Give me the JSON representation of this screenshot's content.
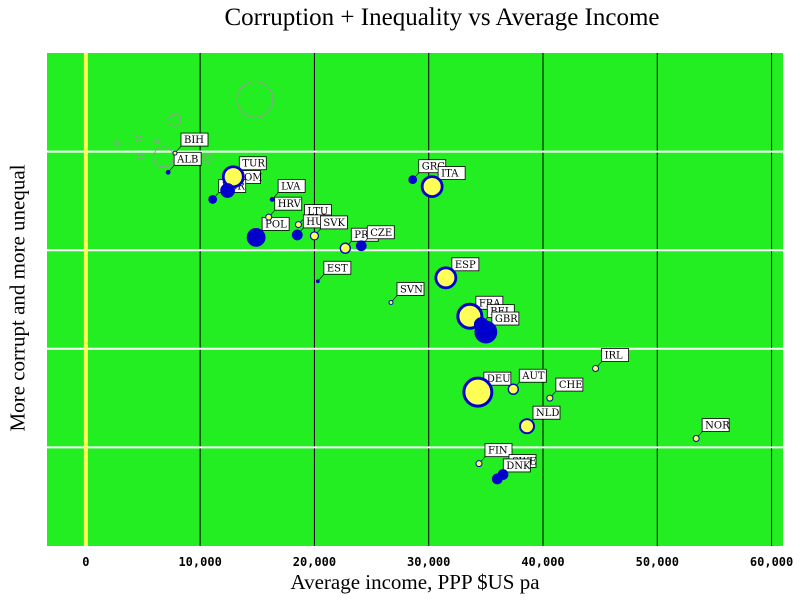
{
  "chart_data": {
    "type": "scatter",
    "title": "Corruption + Inequality vs Average Income",
    "xlabel": "Average income, PPP $US pa",
    "ylabel": "More corrupt and more unequal",
    "xlim": [
      -3400,
      61000
    ],
    "ylim": [
      0,
      100
    ],
    "x_ticks": [
      0,
      10000,
      20000,
      30000,
      40000,
      50000,
      60000
    ],
    "x_tick_labels": [
      "0",
      "10,000",
      "20,000",
      "30,000",
      "40,000",
      "50,000",
      "60,000"
    ],
    "y_gridlines": [
      20,
      40,
      60,
      80
    ],
    "colors": {
      "plot_bg": "#22ee22",
      "grid_h": "#ffffff",
      "grid_v": "#000000",
      "zero_line": "#ffff55",
      "blue": "#0000cc",
      "yellow": "#ffff55",
      "label_box": "#ffffff"
    },
    "points": [
      {
        "name": "BIH",
        "x": 7800,
        "y": 79.7,
        "size": 2,
        "fill": "yellow",
        "ring": "blue"
      },
      {
        "name": "ALB",
        "x": 7200,
        "y": 75.8,
        "size": 2,
        "fill": "blue",
        "ring": "blue"
      },
      {
        "name": "TUR",
        "x": 12900,
        "y": 74.9,
        "size": 10,
        "fill": "yellow",
        "ring": "blue"
      },
      {
        "name": "ROM",
        "x": 12400,
        "y": 72.1,
        "size": 7,
        "fill": "blue",
        "ring": "blue"
      },
      {
        "name": "BGR",
        "x": 11100,
        "y": 70.3,
        "size": 4,
        "fill": "blue",
        "ring": "blue"
      },
      {
        "name": "LVA",
        "x": 16300,
        "y": 70.3,
        "size": 2,
        "fill": "blue",
        "ring": "blue"
      },
      {
        "name": "HRV",
        "x": 16000,
        "y": 66.7,
        "size": 3,
        "fill": "yellow",
        "ring": "blue"
      },
      {
        "name": "LTU",
        "x": 18600,
        "y": 65.2,
        "size": 3,
        "fill": "yellow",
        "ring": "blue"
      },
      {
        "name": "POL",
        "x": 14900,
        "y": 62.6,
        "size": 9,
        "fill": "blue",
        "ring": "blue"
      },
      {
        "name": "HUN",
        "x": 18500,
        "y": 63.1,
        "size": 5,
        "fill": "blue",
        "ring": "blue"
      },
      {
        "name": "SVK",
        "x": 20000,
        "y": 62.9,
        "size": 4,
        "fill": "yellow",
        "ring": "blue"
      },
      {
        "name": "PRT",
        "x": 22700,
        "y": 60.4,
        "size": 5,
        "fill": "yellow",
        "ring": "blue"
      },
      {
        "name": "CZE",
        "x": 24100,
        "y": 60.9,
        "size": 5,
        "fill": "blue",
        "ring": "blue"
      },
      {
        "name": "GRC",
        "x": 28600,
        "y": 74.3,
        "size": 4,
        "fill": "blue",
        "ring": "blue"
      },
      {
        "name": "ITA",
        "x": 30300,
        "y": 72.9,
        "size": 10,
        "fill": "yellow",
        "ring": "blue"
      },
      {
        "name": "EST",
        "x": 20300,
        "y": 53.7,
        "size": 1,
        "fill": "blue",
        "ring": "blue"
      },
      {
        "name": "ESP",
        "x": 31500,
        "y": 54.4,
        "size": 10,
        "fill": "yellow",
        "ring": "blue"
      },
      {
        "name": "SVN",
        "x": 26700,
        "y": 49.4,
        "size": 2,
        "fill": "yellow",
        "ring": "blue"
      },
      {
        "name": "FRA",
        "x": 33600,
        "y": 46.6,
        "size": 12,
        "fill": "yellow",
        "ring": "blue"
      },
      {
        "name": "BEL",
        "x": 34600,
        "y": 44.9,
        "size": 7,
        "fill": "blue",
        "ring": "blue"
      },
      {
        "name": "GBR",
        "x": 35000,
        "y": 43.4,
        "size": 11,
        "fill": "blue",
        "ring": "blue"
      },
      {
        "name": "IRL",
        "x": 44600,
        "y": 36.0,
        "size": 3,
        "fill": "yellow",
        "ring": "blue"
      },
      {
        "name": "DEU",
        "x": 34300,
        "y": 31.2,
        "size": 14,
        "fill": "yellow",
        "ring": "blue"
      },
      {
        "name": "AUT",
        "x": 37400,
        "y": 31.8,
        "size": 5,
        "fill": "yellow",
        "ring": "blue"
      },
      {
        "name": "CHE",
        "x": 40600,
        "y": 30.0,
        "size": 3,
        "fill": "yellow",
        "ring": "blue"
      },
      {
        "name": "NLD",
        "x": 38600,
        "y": 24.3,
        "size": 7,
        "fill": "yellow",
        "ring": "blue"
      },
      {
        "name": "NOR",
        "x": 53400,
        "y": 21.8,
        "size": 3,
        "fill": "yellow",
        "ring": "blue"
      },
      {
        "name": "FIN",
        "x": 34400,
        "y": 16.7,
        "size": 3,
        "fill": "yellow",
        "ring": "blue"
      },
      {
        "name": "SWE",
        "x": 36500,
        "y": 14.5,
        "size": 5,
        "fill": "blue",
        "ring": "blue"
      },
      {
        "name": "DNK",
        "x": 36000,
        "y": 13.6,
        "size": 5,
        "fill": "blue",
        "ring": "blue"
      }
    ],
    "unlabeled_outline_circles": [
      {
        "x": 2700,
        "y": 81.7,
        "size": 2
      },
      {
        "x": 4600,
        "y": 82.6,
        "size": 3
      },
      {
        "x": 4800,
        "y": 79.0,
        "size": 3
      },
      {
        "x": 6200,
        "y": 82.1,
        "size": 2
      },
      {
        "x": 6800,
        "y": 78.9,
        "size": 10
      },
      {
        "x": 7800,
        "y": 86.4,
        "size": 6
      },
      {
        "x": 10700,
        "y": 78.6,
        "size": 4
      },
      {
        "x": 14800,
        "y": 90.6,
        "size": 18
      }
    ]
  }
}
